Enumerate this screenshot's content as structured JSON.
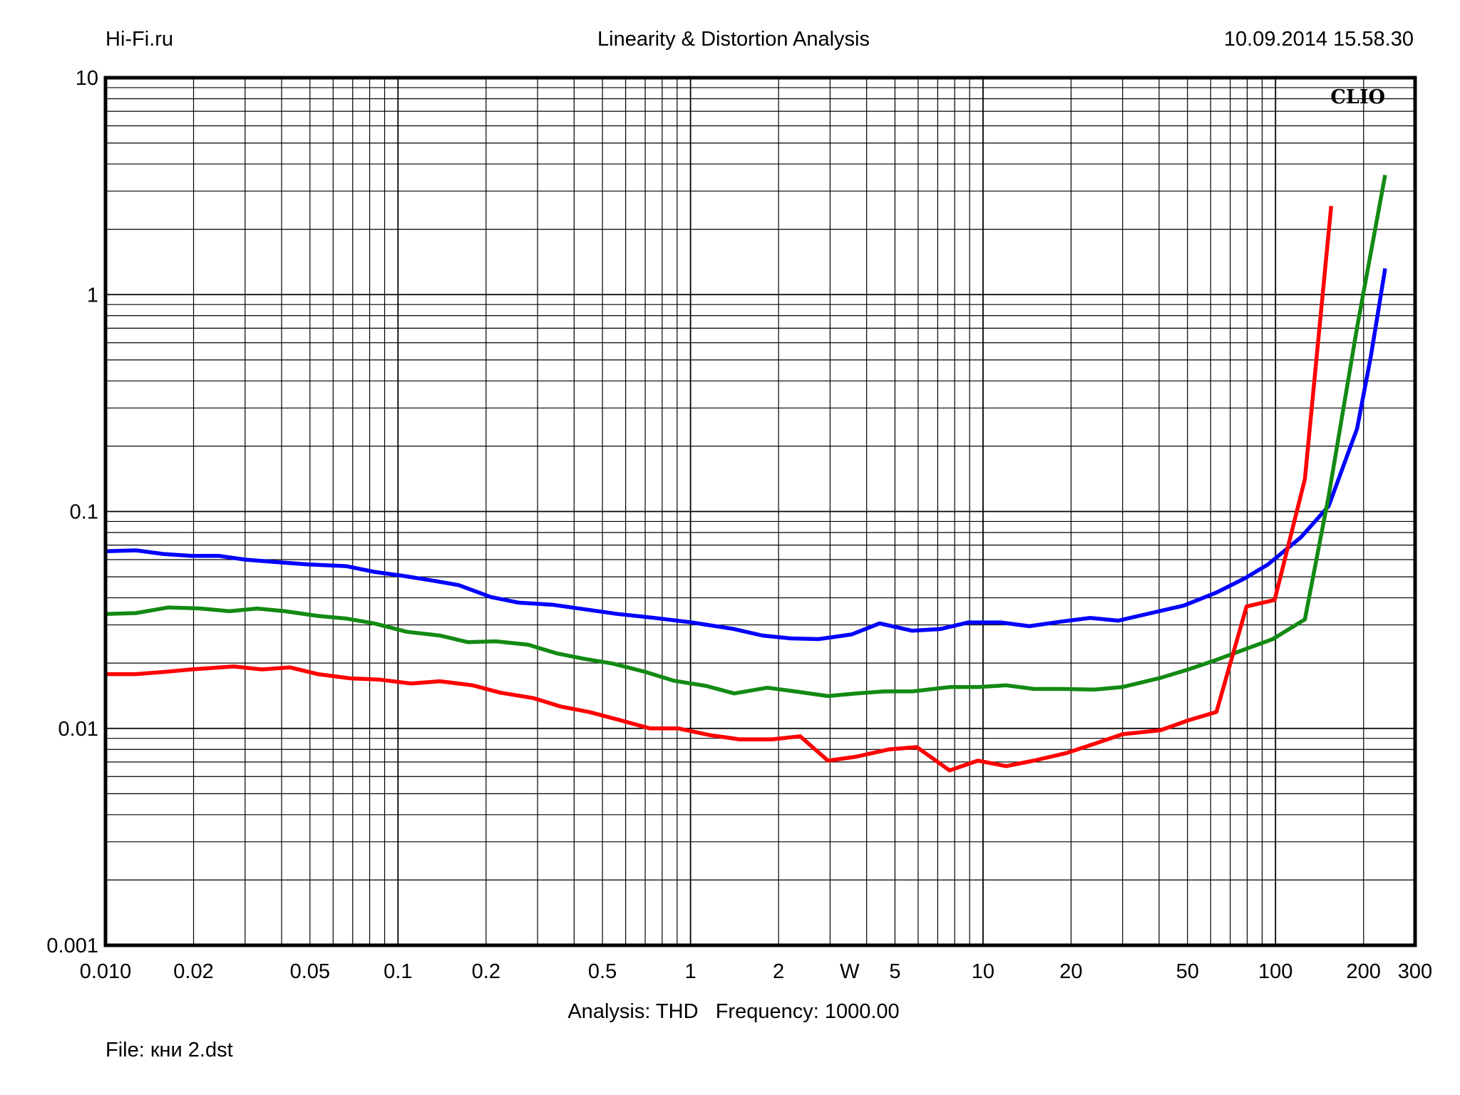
{
  "header": {
    "site": "Hi-Fi.ru",
    "title": "Linearity & Distortion Analysis",
    "datetime": "10.09.2014 15.58.30"
  },
  "footer": {
    "analysis": "Analysis: THD   Frequency: 1000.00",
    "file": "File: кни 2.dst"
  },
  "chart_data": {
    "type": "line",
    "title": "Linearity & Distortion Analysis",
    "watermark": "CLIO",
    "xscale": "log",
    "yscale": "log",
    "xlim": [
      0.01,
      300
    ],
    "ylim": [
      0.001,
      10
    ],
    "grid": true,
    "xlabel": "",
    "ylabel": "",
    "x_ticks": [
      {
        "v": 0.01,
        "label": "0.010"
      },
      {
        "v": 0.02,
        "label": "0.02"
      },
      {
        "v": 0.05,
        "label": "0.05"
      },
      {
        "v": 0.1,
        "label": "0.1"
      },
      {
        "v": 0.2,
        "label": "0.2"
      },
      {
        "v": 0.5,
        "label": "0.5"
      },
      {
        "v": 1,
        "label": "1"
      },
      {
        "v": 2,
        "label": "2"
      },
      {
        "v": 3.5,
        "label": "W"
      },
      {
        "v": 5,
        "label": "5"
      },
      {
        "v": 10,
        "label": "10"
      },
      {
        "v": 20,
        "label": "20"
      },
      {
        "v": 50,
        "label": "50"
      },
      {
        "v": 100,
        "label": "100"
      },
      {
        "v": 200,
        "label": "200"
      },
      {
        "v": 300,
        "label": "300"
      }
    ],
    "y_ticks": [
      {
        "v": 10,
        "label": "10"
      },
      {
        "v": 1,
        "label": "1"
      },
      {
        "v": 0.1,
        "label": "0.1"
      },
      {
        "v": 0.01,
        "label": "0.01"
      },
      {
        "v": 0.001,
        "label": "0.001"
      }
    ],
    "series": [
      {
        "name": "blue",
        "color": "#0000ff",
        "x": [
          0.01,
          0.0127,
          0.0158,
          0.0197,
          0.0245,
          0.03,
          0.0368,
          0.0494,
          0.0664,
          0.0828,
          0.103,
          0.129,
          0.161,
          0.208,
          0.259,
          0.336,
          0.435,
          0.562,
          0.755,
          1.01,
          1.41,
          1.76,
          2.2,
          2.74,
          3.55,
          4.43,
          5.73,
          7.14,
          8.91,
          11.5,
          14.4,
          18.6,
          23.2,
          29.0,
          38.9,
          48.5,
          62.8,
          78.3,
          94.2,
          122,
          152,
          190,
          212,
          237
        ],
        "y": [
          0.0656,
          0.0662,
          0.0637,
          0.0624,
          0.0624,
          0.06,
          0.0587,
          0.057,
          0.056,
          0.0527,
          0.0506,
          0.0482,
          0.0458,
          0.0403,
          0.038,
          0.0372,
          0.0354,
          0.0337,
          0.0323,
          0.0308,
          0.0287,
          0.0268,
          0.026,
          0.0258,
          0.0271,
          0.0305,
          0.0282,
          0.0287,
          0.0308,
          0.0308,
          0.0296,
          0.0311,
          0.0323,
          0.0314,
          0.0344,
          0.0368,
          0.0423,
          0.0491,
          0.057,
          0.076,
          0.106,
          0.241,
          0.522,
          1.32
        ]
      },
      {
        "name": "green",
        "color": "#138a13",
        "x": [
          0.01,
          0.0127,
          0.0164,
          0.0212,
          0.0265,
          0.033,
          0.0411,
          0.0532,
          0.0664,
          0.0828,
          0.107,
          0.139,
          0.173,
          0.216,
          0.279,
          0.348,
          0.435,
          0.542,
          0.702,
          0.875,
          1.13,
          1.41,
          1.83,
          2.28,
          2.95,
          3.68,
          4.59,
          5.73,
          7.69,
          9.6,
          12.0,
          14.9,
          18.6,
          24.1,
          29.9,
          40.4,
          50.4,
          62.8,
          78.3,
          97.8,
          126,
          152,
          190,
          237
        ],
        "y": [
          0.0337,
          0.034,
          0.0361,
          0.0357,
          0.0347,
          0.0357,
          0.0347,
          0.033,
          0.0321,
          0.0305,
          0.0279,
          0.0268,
          0.025,
          0.0252,
          0.0243,
          0.0222,
          0.0209,
          0.0199,
          0.0182,
          0.0166,
          0.0157,
          0.0145,
          0.0154,
          0.0148,
          0.0141,
          0.0145,
          0.0148,
          0.0148,
          0.0155,
          0.0155,
          0.0158,
          0.0152,
          0.0152,
          0.0151,
          0.0155,
          0.0171,
          0.0187,
          0.0207,
          0.0231,
          0.0258,
          0.0318,
          0.118,
          0.705,
          3.56
        ]
      },
      {
        "name": "red",
        "color": "#ff0000",
        "x": [
          0.01,
          0.0127,
          0.0158,
          0.0197,
          0.0274,
          0.0342,
          0.0427,
          0.0532,
          0.0689,
          0.0859,
          0.111,
          0.139,
          0.18,
          0.224,
          0.29,
          0.361,
          0.451,
          0.562,
          0.728,
          0.908,
          1.17,
          1.47,
          1.9,
          2.37,
          2.95,
          3.68,
          4.77,
          5.94,
          7.69,
          9.6,
          12.0,
          14.9,
          19.3,
          24.1,
          30.0,
          40.4,
          50.4,
          62.8,
          79.6,
          99.3,
          126,
          155
        ],
        "y": [
          0.0178,
          0.0178,
          0.0182,
          0.0187,
          0.0193,
          0.0187,
          0.0191,
          0.0178,
          0.017,
          0.0168,
          0.0161,
          0.0165,
          0.0158,
          0.0146,
          0.0138,
          0.0126,
          0.0119,
          0.011,
          0.01,
          0.01,
          0.0093,
          0.0089,
          0.0089,
          0.0092,
          0.0071,
          0.0074,
          0.008,
          0.0082,
          0.0064,
          0.0071,
          0.0067,
          0.0071,
          0.0077,
          0.0085,
          0.0094,
          0.0098,
          0.0109,
          0.0119,
          0.0365,
          0.0391,
          0.141,
          2.56
        ]
      }
    ]
  }
}
